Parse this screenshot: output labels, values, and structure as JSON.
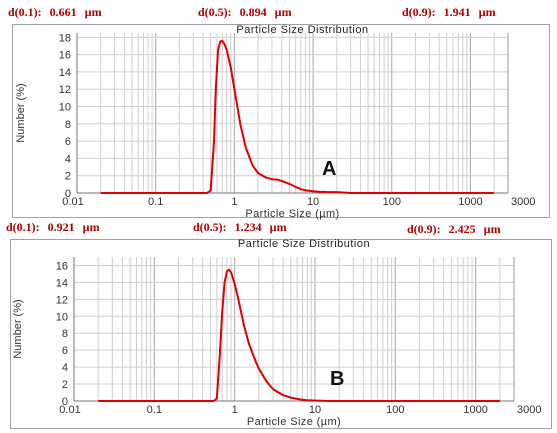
{
  "panels": [
    {
      "stats": [
        {
          "label": "d(0.1):",
          "value": "0.661",
          "unit": "µm"
        },
        {
          "label": "d(0.5):",
          "value": "0.894",
          "unit": "µm"
        },
        {
          "label": "d(0.9):",
          "value": "1.941",
          "unit": "µm"
        }
      ]
    },
    {
      "stats": [
        {
          "label": "d(0.1):",
          "value": "0.921",
          "unit": "µm"
        },
        {
          "label": "d(0.5):",
          "value": "1.234",
          "unit": "µm"
        },
        {
          "label": "d(0.9):",
          "value": "2.425",
          "unit": "µm"
        }
      ]
    }
  ],
  "chart_data": [
    {
      "type": "line",
      "title": "Particle Size Distribution",
      "xlabel": "Particle Size (µm)",
      "ylabel": "Number (%)",
      "xscale": "log",
      "xlim": [
        0.01,
        3000
      ],
      "ylim": [
        0,
        18.5
      ],
      "xticks": [
        0.01,
        0.1,
        1,
        10,
        100,
        1000,
        3000
      ],
      "xtick_labels": [
        "0.01",
        "0.1",
        "1",
        "10",
        "100",
        "1000",
        "3000"
      ],
      "yticks": [
        0,
        2,
        4,
        6,
        8,
        10,
        12,
        14,
        16,
        18
      ],
      "grid": true,
      "annotation": "A",
      "line_color": "#e00000",
      "series": [
        {
          "x": [
            0.02,
            0.3,
            0.45,
            0.5,
            0.55,
            0.58,
            0.62,
            0.66,
            0.7,
            0.75,
            0.8,
            0.9,
            1.0,
            1.2,
            1.4,
            1.7,
            2.0,
            2.5,
            3.0,
            3.5,
            4.0,
            5.0,
            6.0,
            7.0,
            8.0,
            10.0,
            12.0,
            15.0,
            20.0,
            30.0,
            2000.0
          ],
          "y": [
            0,
            0,
            0,
            0.3,
            6.0,
            12.0,
            16.5,
            17.5,
            17.6,
            17.2,
            16.5,
            14.5,
            12.0,
            7.8,
            5.2,
            3.2,
            2.3,
            1.8,
            1.6,
            1.55,
            1.4,
            1.05,
            0.7,
            0.45,
            0.3,
            0.2,
            0.15,
            0.12,
            0.1,
            0,
            0
          ]
        }
      ]
    },
    {
      "type": "line",
      "title": "Particle Size Distribution",
      "xlabel": "Particle Size (µm)",
      "ylabel": "Number (%)",
      "xscale": "log",
      "xlim": [
        0.01,
        3000
      ],
      "ylim": [
        0,
        17
      ],
      "xticks": [
        0.01,
        0.1,
        1,
        10,
        100,
        1000,
        3000
      ],
      "xtick_labels": [
        "0.01",
        "0.1",
        "1",
        "10",
        "100",
        "1000",
        "3000"
      ],
      "yticks": [
        0,
        2,
        4,
        6,
        8,
        10,
        12,
        14,
        16
      ],
      "grid": true,
      "annotation": "B",
      "line_color": "#e00000",
      "series": [
        {
          "x": [
            0.02,
            0.4,
            0.55,
            0.6,
            0.65,
            0.7,
            0.75,
            0.8,
            0.85,
            0.9,
            1.0,
            1.1,
            1.3,
            1.5,
            1.8,
            2.0,
            2.5,
            3.0,
            4.0,
            5.0,
            6.0,
            7.0,
            8.0,
            10.0,
            12.0,
            15.0,
            2000.0
          ],
          "y": [
            0,
            0,
            0,
            0.3,
            5.0,
            10.5,
            14.0,
            15.3,
            15.5,
            15.2,
            13.8,
            12.2,
            9.0,
            6.8,
            4.8,
            3.8,
            2.3,
            1.4,
            0.7,
            0.4,
            0.25,
            0.15,
            0.1,
            0.05,
            0.02,
            0,
            0
          ]
        }
      ]
    }
  ]
}
